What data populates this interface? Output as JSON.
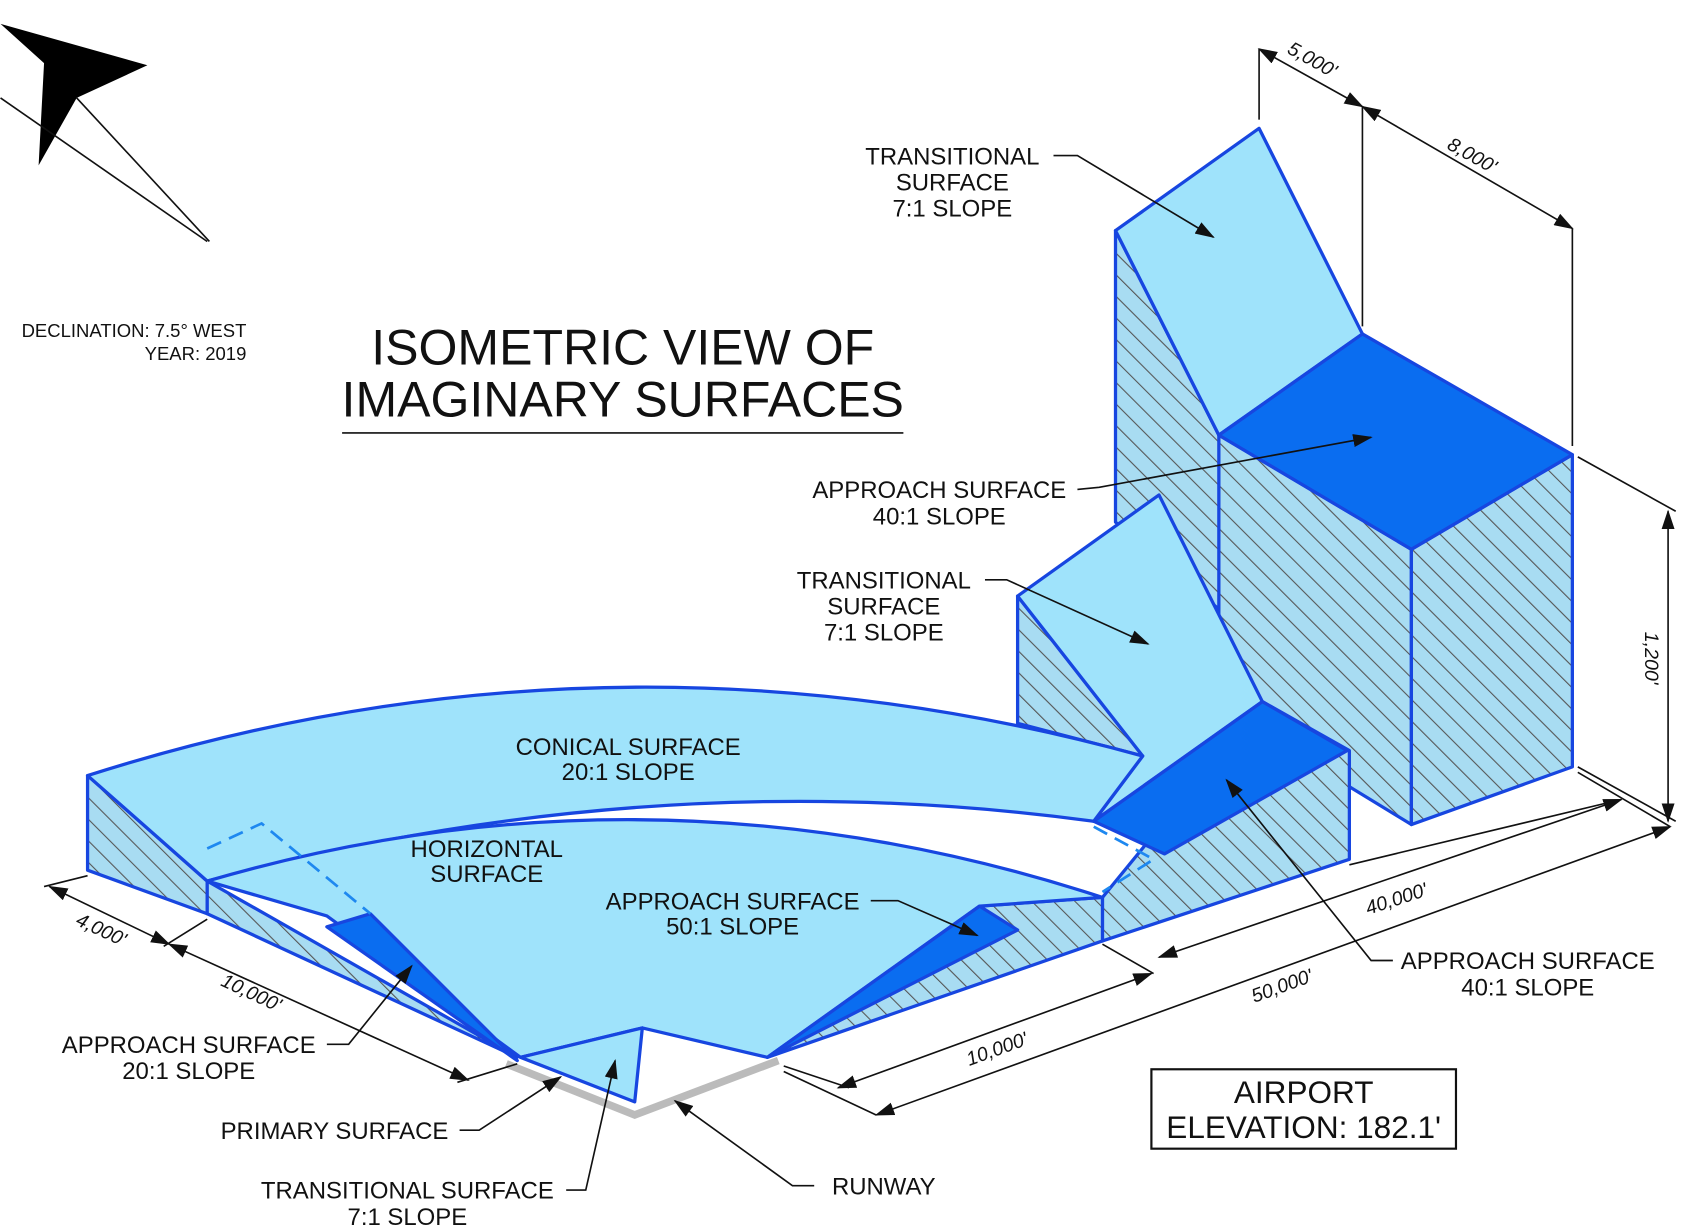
{
  "title": [
    "ISOMETRIC VIEW OF",
    "IMAGINARY SURFACES"
  ],
  "declination": "DECLINATION:   7.5° WEST",
  "year": "YEAR: 2019",
  "callouts": [
    {
      "lines": [
        "TRANSITIONAL",
        "SURFACE",
        "7:1 SLOPE"
      ]
    },
    {
      "lines": [
        "APPROACH SURFACE",
        "40:1 SLOPE"
      ]
    },
    {
      "lines": [
        "TRANSITIONAL",
        "SURFACE",
        "7:1 SLOPE"
      ]
    },
    {
      "lines": [
        "CONICAL SURFACE",
        "20:1 SLOPE"
      ]
    },
    {
      "lines": [
        "HORIZONTAL",
        "SURFACE"
      ]
    },
    {
      "lines": [
        "APPROACH SURFACE",
        "50:1 SLOPE"
      ]
    },
    {
      "lines": [
        "APPROACH SURFACE",
        "40:1 SLOPE"
      ]
    },
    {
      "lines": [
        "APPROACH SURFACE",
        "20:1 SLOPE"
      ]
    },
    {
      "lines": [
        "PRIMARY SURFACE"
      ]
    },
    {
      "lines": [
        "TRANSITIONAL SURFACE",
        "7:1 SLOPE"
      ]
    },
    {
      "lines": [
        "RUNWAY"
      ]
    }
  ],
  "dimensions": [
    "5,000'",
    "8,000'",
    "1,200'",
    "4,000'",
    "10,000'",
    "10,000'",
    "40,000'",
    "50,000'"
  ],
  "elevation_box": [
    "AIRPORT",
    "ELEVATION: 182.1'"
  ]
}
